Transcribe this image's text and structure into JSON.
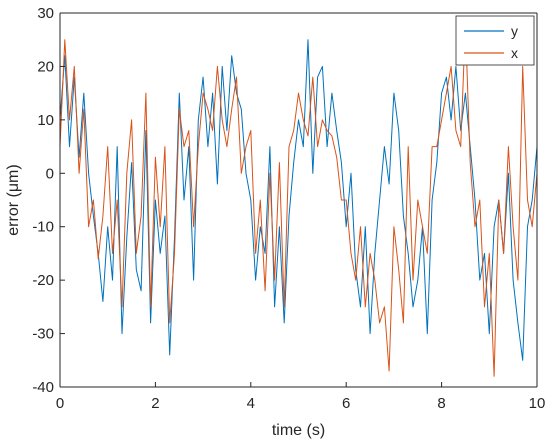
{
  "chart_data": {
    "type": "line",
    "title": "",
    "xlabel": "time (s)",
    "ylabel": "error (μm)",
    "xlim": [
      0,
      10
    ],
    "ylim": [
      -40,
      30
    ],
    "xticks": [
      0,
      2,
      4,
      6,
      8,
      10
    ],
    "yticks": [
      -40,
      -30,
      -20,
      -10,
      0,
      10,
      20,
      30
    ],
    "xtick_labels": [
      "0",
      "2",
      "4",
      "6",
      "8",
      "10"
    ],
    "ytick_labels": [
      "-40",
      "-30",
      "-20",
      "-10",
      "0",
      "10",
      "20",
      "30"
    ],
    "grid": false,
    "legend_position": "top-right",
    "series": [
      {
        "name": "y",
        "color": "#0072BD",
        "x": [
          0,
          0.1,
          0.2,
          0.3,
          0.4,
          0.5,
          0.6,
          0.7,
          0.8,
          0.9,
          1.0,
          1.1,
          1.2,
          1.3,
          1.4,
          1.5,
          1.6,
          1.7,
          1.8,
          1.9,
          2.0,
          2.1,
          2.2,
          2.3,
          2.4,
          2.5,
          2.6,
          2.7,
          2.8,
          2.9,
          3.0,
          3.1,
          3.2,
          3.3,
          3.4,
          3.5,
          3.6,
          3.7,
          3.8,
          3.9,
          4.0,
          4.1,
          4.2,
          4.3,
          4.4,
          4.5,
          4.6,
          4.7,
          4.8,
          4.9,
          5.0,
          5.1,
          5.2,
          5.3,
          5.4,
          5.5,
          5.6,
          5.7,
          5.8,
          5.9,
          6.0,
          6.1,
          6.2,
          6.3,
          6.4,
          6.5,
          6.6,
          6.7,
          6.8,
          6.9,
          7.0,
          7.1,
          7.2,
          7.3,
          7.4,
          7.5,
          7.6,
          7.7,
          7.8,
          7.9,
          8.0,
          8.1,
          8.2,
          8.3,
          8.4,
          8.5,
          8.6,
          8.7,
          8.8,
          8.9,
          9.0,
          9.1,
          9.2,
          9.3,
          9.4,
          9.5,
          9.6,
          9.7,
          9.8,
          9.9,
          10.0
        ],
        "values": [
          10,
          22,
          5,
          18,
          3,
          15,
          0,
          -8,
          -15,
          -24,
          -10,
          -20,
          5,
          -30,
          -12,
          2,
          -18,
          -22,
          8,
          -28,
          -5,
          -15,
          -8,
          -34,
          -12,
          15,
          -5,
          5,
          -20,
          10,
          18,
          5,
          15,
          -2,
          20,
          8,
          22,
          15,
          12,
          0,
          -5,
          -20,
          -10,
          -15,
          5,
          -25,
          -10,
          -28,
          -8,
          2,
          10,
          5,
          25,
          0,
          18,
          20,
          5,
          15,
          8,
          2,
          -10,
          0,
          -18,
          -25,
          -10,
          -30,
          -15,
          -5,
          5,
          -2,
          15,
          8,
          -8,
          -15,
          -25,
          -20,
          -10,
          -30,
          -5,
          2,
          15,
          18,
          10,
          20,
          8,
          15,
          5,
          -5,
          -20,
          -15,
          -30,
          -10,
          -5,
          -15,
          0,
          -20,
          -28,
          -35,
          -10,
          -5,
          5
        ]
      },
      {
        "name": "x",
        "color": "#D95319",
        "x": [
          0,
          0.1,
          0.2,
          0.3,
          0.4,
          0.5,
          0.6,
          0.7,
          0.8,
          0.9,
          1.0,
          1.1,
          1.2,
          1.3,
          1.4,
          1.5,
          1.6,
          1.7,
          1.8,
          1.9,
          2.0,
          2.1,
          2.2,
          2.3,
          2.4,
          2.5,
          2.6,
          2.7,
          2.8,
          2.9,
          3.0,
          3.1,
          3.2,
          3.3,
          3.4,
          3.5,
          3.6,
          3.7,
          3.8,
          3.9,
          4.0,
          4.1,
          4.2,
          4.3,
          4.4,
          4.5,
          4.6,
          4.7,
          4.8,
          4.9,
          5.0,
          5.1,
          5.2,
          5.3,
          5.4,
          5.5,
          5.6,
          5.7,
          5.8,
          5.9,
          6.0,
          6.1,
          6.2,
          6.3,
          6.4,
          6.5,
          6.6,
          6.7,
          6.8,
          6.9,
          7.0,
          7.1,
          7.2,
          7.3,
          7.4,
          7.5,
          7.6,
          7.7,
          7.8,
          7.9,
          8.0,
          8.1,
          8.2,
          8.3,
          8.4,
          8.5,
          8.6,
          8.7,
          8.8,
          8.9,
          9.0,
          9.1,
          9.2,
          9.3,
          9.4,
          9.5,
          9.6,
          9.7,
          9.8,
          9.9,
          10.0
        ],
        "values": [
          5,
          25,
          10,
          20,
          0,
          12,
          -10,
          -5,
          -16,
          -8,
          5,
          -15,
          -5,
          -25,
          0,
          10,
          -15,
          -8,
          15,
          -25,
          3,
          -10,
          5,
          -28,
          -15,
          12,
          5,
          8,
          -10,
          5,
          15,
          12,
          8,
          20,
          10,
          5,
          12,
          18,
          0,
          5,
          8,
          -15,
          -5,
          -22,
          0,
          -20,
          2,
          -25,
          5,
          8,
          15,
          10,
          7,
          18,
          5,
          10,
          8,
          7,
          3,
          -5,
          -5,
          -15,
          -20,
          -10,
          -25,
          -15,
          -20,
          -28,
          -25,
          -37,
          -10,
          -18,
          -28,
          5,
          -20,
          -5,
          -10,
          -15,
          5,
          5,
          10,
          15,
          20,
          8,
          5,
          28,
          2,
          -10,
          -5,
          -25,
          -15,
          -38,
          -5,
          -15,
          5,
          -10,
          -20,
          20,
          -5,
          -10,
          0
        ]
      }
    ]
  }
}
